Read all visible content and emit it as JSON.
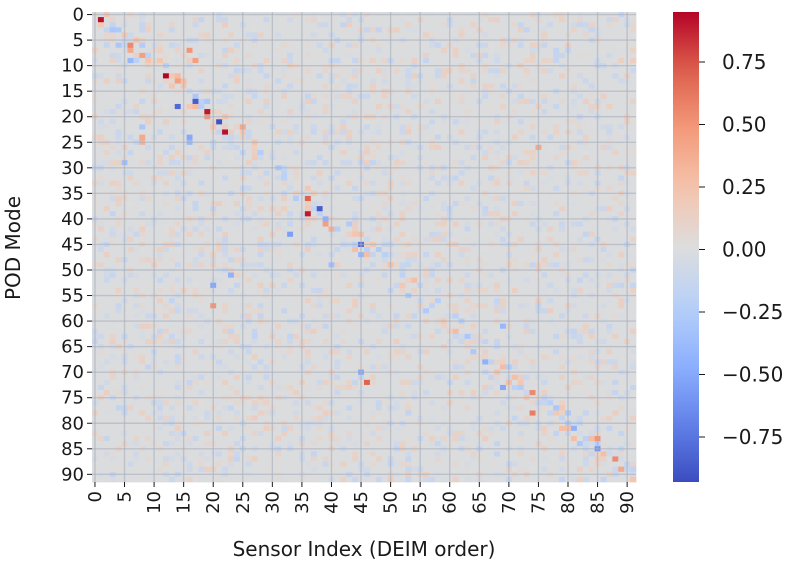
{
  "chart_data": {
    "type": "heatmap",
    "title": "",
    "xlabel": "Sensor Index (DEIM order)",
    "ylabel": "POD Mode",
    "rows": 92,
    "cols": 92,
    "x_tick_labels": [
      "0",
      "5",
      "10",
      "15",
      "20",
      "25",
      "30",
      "35",
      "40",
      "45",
      "50",
      "55",
      "60",
      "65",
      "70",
      "75",
      "80",
      "85",
      "90"
    ],
    "y_tick_labels": [
      "0",
      "5",
      "10",
      "15",
      "20",
      "25",
      "30",
      "35",
      "40",
      "45",
      "50",
      "55",
      "60",
      "65",
      "70",
      "75",
      "80",
      "85",
      "90"
    ],
    "colormap": "coolwarm",
    "vmin": -0.93,
    "vmax": 0.95,
    "colorbar_ticks": [
      -0.75,
      -0.5,
      -0.25,
      0.0,
      0.25,
      0.5,
      0.75
    ],
    "colorbar_tick_labels": [
      "−0.75",
      "−0.50",
      "−0.25",
      "0.00",
      "0.25",
      "0.50",
      "0.75"
    ],
    "grid": true,
    "background_value": 0.0,
    "notable_cells": [
      {
        "row": 1,
        "col": 1,
        "value": 0.92
      },
      {
        "row": 3,
        "col": 3,
        "value": -0.3
      },
      {
        "row": 6,
        "col": 6,
        "value": 0.55
      },
      {
        "row": 7,
        "col": 6,
        "value": 0.4
      },
      {
        "row": 8,
        "col": 8,
        "value": 0.45
      },
      {
        "row": 9,
        "col": 6,
        "value": -0.4
      },
      {
        "row": 7,
        "col": 16,
        "value": 0.5
      },
      {
        "row": 9,
        "col": 17,
        "value": 0.45
      },
      {
        "row": 12,
        "col": 12,
        "value": 0.95
      },
      {
        "row": 13,
        "col": 14,
        "value": 0.45
      },
      {
        "row": 17,
        "col": 17,
        "value": -0.85
      },
      {
        "row": 18,
        "col": 14,
        "value": -0.8
      },
      {
        "row": 19,
        "col": 19,
        "value": 0.9
      },
      {
        "row": 20,
        "col": 19,
        "value": 0.5
      },
      {
        "row": 21,
        "col": 21,
        "value": -0.9
      },
      {
        "row": 23,
        "col": 22,
        "value": 0.92
      },
      {
        "row": 22,
        "col": 25,
        "value": 0.4
      },
      {
        "row": 24,
        "col": 16,
        "value": -0.5
      },
      {
        "row": 25,
        "col": 16,
        "value": -0.4
      },
      {
        "row": 24,
        "col": 8,
        "value": 0.4
      },
      {
        "row": 25,
        "col": 8,
        "value": 0.35
      },
      {
        "row": 22,
        "col": 8,
        "value": -0.3
      },
      {
        "row": 36,
        "col": 36,
        "value": 0.7
      },
      {
        "row": 38,
        "col": 38,
        "value": -0.85
      },
      {
        "row": 39,
        "col": 36,
        "value": 0.9
      },
      {
        "row": 40,
        "col": 39,
        "value": -0.45
      },
      {
        "row": 41,
        "col": 39,
        "value": 0.45
      },
      {
        "row": 42,
        "col": 40,
        "value": 0.35
      },
      {
        "row": 45,
        "col": 45,
        "value": -0.8
      },
      {
        "row": 47,
        "col": 45,
        "value": -0.4
      },
      {
        "row": 49,
        "col": 40,
        "value": -0.35
      },
      {
        "row": 53,
        "col": 20,
        "value": -0.5
      },
      {
        "row": 57,
        "col": 20,
        "value": 0.5
      },
      {
        "row": 51,
        "col": 23,
        "value": -0.45
      },
      {
        "row": 43,
        "col": 33,
        "value": -0.55
      },
      {
        "row": 72,
        "col": 46,
        "value": 0.7
      },
      {
        "row": 70,
        "col": 45,
        "value": -0.5
      },
      {
        "row": 74,
        "col": 74,
        "value": 0.55
      },
      {
        "row": 78,
        "col": 74,
        "value": 0.6
      },
      {
        "row": 73,
        "col": 69,
        "value": -0.5
      },
      {
        "row": 68,
        "col": 66,
        "value": -0.45
      },
      {
        "row": 61,
        "col": 69,
        "value": -0.4
      },
      {
        "row": 81,
        "col": 81,
        "value": -0.45
      },
      {
        "row": 83,
        "col": 85,
        "value": 0.5
      },
      {
        "row": 85,
        "col": 85,
        "value": -0.6
      },
      {
        "row": 87,
        "col": 88,
        "value": 0.55
      },
      {
        "row": 89,
        "col": 89,
        "value": 0.4
      },
      {
        "row": 26,
        "col": 75,
        "value": 0.4
      },
      {
        "row": 29,
        "col": 5,
        "value": -0.35
      }
    ]
  }
}
